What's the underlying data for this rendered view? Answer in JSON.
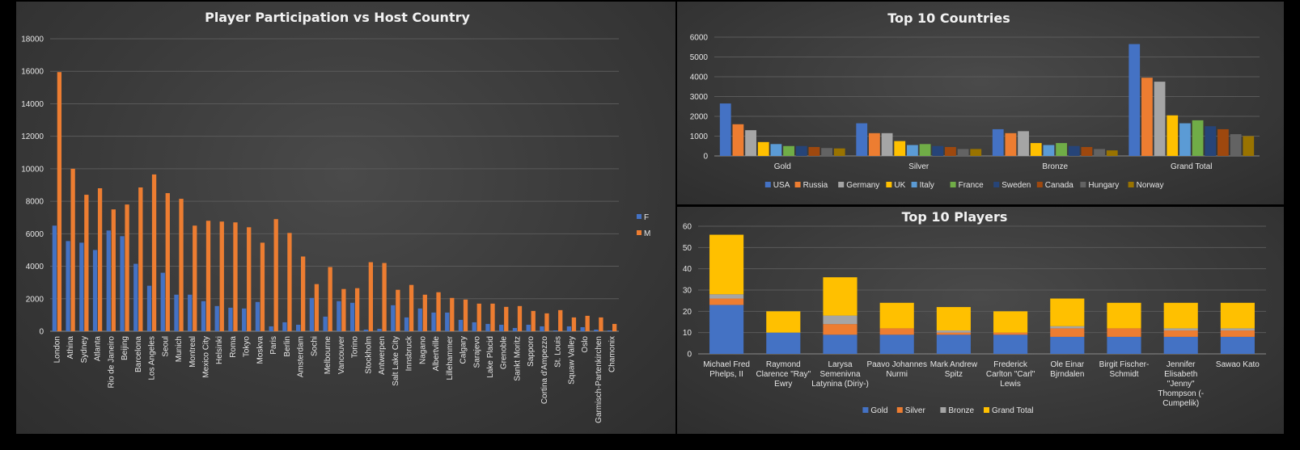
{
  "chart_data": [
    {
      "type": "bar",
      "title": "Player Participation vs Host Country",
      "categories": [
        "London",
        "Athina",
        "Sydney",
        "Atlanta",
        "Rio de Janeiro",
        "Beijing",
        "Barcelona",
        "Los Angeles",
        "Seoul",
        "Munich",
        "Montreal",
        "Mexico City",
        "Helsinki",
        "Roma",
        "Tokyo",
        "Moskva",
        "Paris",
        "Berlin",
        "Amsterdam",
        "Sochi",
        "Melbourne",
        "Vancouver",
        "Torino",
        "Stockholm",
        "Antwerpen",
        "Salt Lake City",
        "Innsbruck",
        "Nagano",
        "Albertville",
        "Lillehammer",
        "Calgary",
        "Sarajevo",
        "Lake Placid",
        "Grenoble",
        "Sankt Moritz",
        "Sapporo",
        "Cortina d'Ampezzo",
        "St. Louis",
        "Squaw Valley",
        "Oslo",
        "Garmisch-Partenkirchen",
        "Chamonix"
      ],
      "series": [
        {
          "name": "F",
          "values": [
            6500,
            5550,
            5450,
            5000,
            6200,
            5850,
            4150,
            2800,
            3600,
            2250,
            2250,
            1850,
            1550,
            1450,
            1400,
            1800,
            300,
            550,
            400,
            2050,
            900,
            1850,
            1750,
            100,
            150,
            1600,
            850,
            1400,
            1150,
            1150,
            700,
            550,
            450,
            400,
            200,
            400,
            300,
            50,
            300,
            250,
            100,
            50
          ]
        },
        {
          "name": "M",
          "values": [
            15950,
            10000,
            8400,
            8800,
            7500,
            7800,
            8850,
            9650,
            8500,
            8150,
            6500,
            6800,
            6750,
            6700,
            6400,
            5450,
            6900,
            6050,
            4600,
            2900,
            3950,
            2600,
            2650,
            4250,
            4200,
            2550,
            2850,
            2250,
            2400,
            2050,
            1950,
            1700,
            1700,
            1500,
            1550,
            1250,
            1100,
            1300,
            850,
            950,
            850,
            450
          ]
        }
      ],
      "ylim": [
        0,
        18000
      ],
      "yticks": [
        0,
        2000,
        4000,
        6000,
        8000,
        10000,
        12000,
        14000,
        16000,
        18000
      ],
      "legend": "right",
      "colors": [
        "#4472C4",
        "#ED7D31"
      ]
    },
    {
      "type": "bar",
      "title": "Top 10 Countries",
      "categories": [
        "Gold",
        "Silver",
        "Bronze",
        "Grand Total"
      ],
      "series": [
        {
          "name": "USA",
          "values": [
            2650,
            1650,
            1350,
            5650
          ]
        },
        {
          "name": "Russia",
          "values": [
            1600,
            1150,
            1150,
            3950
          ]
        },
        {
          "name": "Germany",
          "values": [
            1300,
            1150,
            1250,
            3750
          ]
        },
        {
          "name": "UK",
          "values": [
            700,
            750,
            650,
            2050
          ]
        },
        {
          "name": "Italy",
          "values": [
            600,
            550,
            550,
            1650
          ]
        },
        {
          "name": "France",
          "values": [
            500,
            600,
            650,
            1800
          ]
        },
        {
          "name": "Sweden",
          "values": [
            500,
            500,
            500,
            1500
          ]
        },
        {
          "name": "Canada",
          "values": [
            450,
            450,
            450,
            1350
          ]
        },
        {
          "name": "Hungary",
          "values": [
            400,
            350,
            350,
            1100
          ]
        },
        {
          "name": "Norway",
          "values": [
            380,
            350,
            280,
            1000
          ]
        }
      ],
      "ylim": [
        0,
        6000
      ],
      "yticks": [
        0,
        1000,
        2000,
        3000,
        4000,
        5000,
        6000
      ],
      "legend": "bottom",
      "colors": [
        "#4472C4",
        "#ED7D31",
        "#A5A5A5",
        "#FFC000",
        "#5B9BD5",
        "#70AD47",
        "#264478",
        "#9E480E",
        "#636363",
        "#997300"
      ]
    },
    {
      "type": "bar",
      "stacked": true,
      "title": "Top 10 Players",
      "categories": [
        [
          "Michael Fred",
          "Phelps, II"
        ],
        [
          "Raymond",
          "Clarence \"Ray\"",
          "Ewry"
        ],
        [
          "Larysa",
          "Semenivna",
          "Latynina (Diriy-)"
        ],
        [
          "Paavo Johannes",
          "Nurmi"
        ],
        [
          "Mark Andrew",
          "Spitz"
        ],
        [
          "Frederick",
          "Carlton \"Carl\"",
          "Lewis"
        ],
        [
          "Ole Einar",
          "Bjrndalen"
        ],
        [
          "Birgit Fischer-",
          "Schmidt"
        ],
        [
          "Jennifer",
          "Elisabeth",
          "\"Jenny\"",
          "Thompson (-",
          "Cumpelik)"
        ],
        [
          "Sawao Kato"
        ]
      ],
      "series": [
        {
          "name": "Gold",
          "values": [
            23,
            10,
            9,
            9,
            9,
            9,
            8,
            8,
            8,
            8
          ]
        },
        {
          "name": "Silver",
          "values": [
            3,
            0,
            5,
            3,
            1,
            1,
            4,
            4,
            3,
            3
          ]
        },
        {
          "name": "Bronze",
          "values": [
            2,
            0,
            4,
            0,
            1,
            0,
            1,
            0,
            1,
            1
          ]
        },
        {
          "name": "Grand Total",
          "values": [
            28,
            10,
            18,
            12,
            11,
            10,
            13,
            12,
            12,
            12
          ]
        }
      ],
      "ylim": [
        0,
        60
      ],
      "yticks": [
        0,
        10,
        20,
        30,
        40,
        50,
        60
      ],
      "legend": "bottom",
      "colors": [
        "#4472C4",
        "#ED7D31",
        "#A5A5A5",
        "#FFC000"
      ]
    }
  ]
}
